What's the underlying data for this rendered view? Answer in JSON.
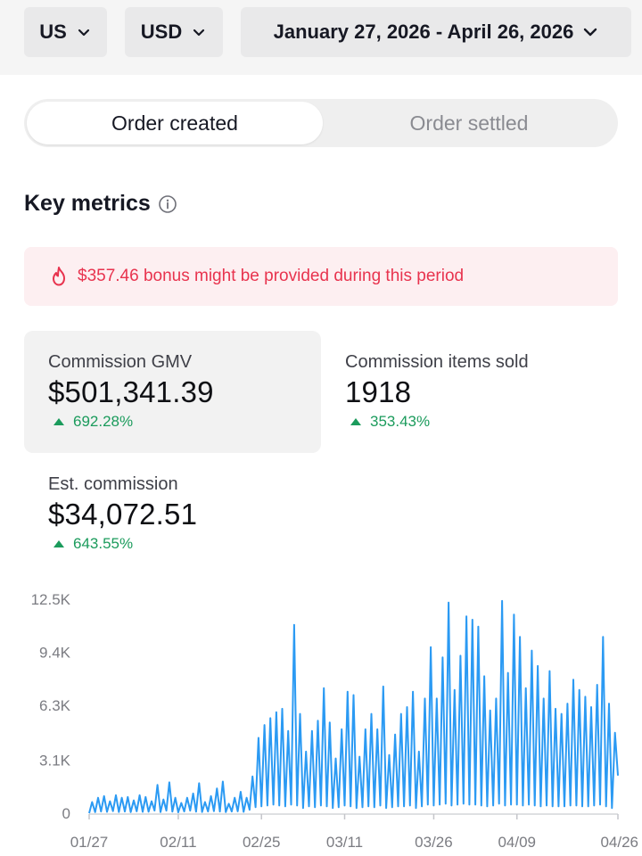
{
  "filters": {
    "country": "US",
    "currency": "USD",
    "date_range": "January 27, 2026 - April 26, 2026"
  },
  "tabs": {
    "created": "Order created",
    "settled": "Order settled",
    "active": "created"
  },
  "section": {
    "title": "Key metrics"
  },
  "bonus": {
    "text": "$357.46 bonus might be provided during this period"
  },
  "metrics": {
    "gmv": {
      "label": "Commission GMV",
      "value": "$501,341.39",
      "change": "692.28%"
    },
    "items": {
      "label": "Commission items sold",
      "value": "1918",
      "change": "353.43%"
    },
    "est": {
      "label": "Est. commission",
      "value": "$34,072.51",
      "change": "643.55%"
    }
  },
  "colors": {
    "line": "#2b9af3",
    "up": "#1b9b5c",
    "bonus": "#e8334e"
  },
  "chart_data": {
    "type": "line",
    "y_tick_labels": [
      "0",
      "3.1K",
      "6.3K",
      "9.4K",
      "12.5K"
    ],
    "y_ticks": [
      0,
      3100,
      6300,
      9400,
      12500
    ],
    "ylim": [
      0,
      12500
    ],
    "x_tick_labels": [
      "01/27",
      "02/11",
      "02/25",
      "03/11",
      "03/26",
      "04/09",
      "04/26"
    ],
    "x_tick_positions": [
      0,
      15,
      29,
      43,
      58,
      72,
      89
    ],
    "x_range": [
      0,
      89
    ],
    "series": [
      {
        "peaks": [
          [
            0.5,
            650
          ],
          [
            1.5,
            900
          ],
          [
            2.5,
            1000
          ],
          [
            3.5,
            700
          ],
          [
            4.5,
            1050
          ],
          [
            5.5,
            900
          ],
          [
            6.5,
            950
          ],
          [
            7.5,
            750
          ],
          [
            8.5,
            1050
          ],
          [
            9.5,
            950
          ],
          [
            10.5,
            700
          ],
          [
            11.5,
            1650
          ],
          [
            12.5,
            800
          ],
          [
            13.5,
            1800
          ],
          [
            14.5,
            900
          ],
          [
            15.5,
            600
          ],
          [
            16.5,
            900
          ],
          [
            17.5,
            1150
          ],
          [
            18.5,
            1750
          ],
          [
            19.5,
            650
          ],
          [
            20.5,
            1000
          ],
          [
            21.5,
            1450
          ],
          [
            22.5,
            1850
          ],
          [
            23.5,
            550
          ],
          [
            24.5,
            900
          ],
          [
            25.5,
            1250
          ],
          [
            26.5,
            900
          ],
          [
            27.5,
            2150
          ],
          [
            28.5,
            4400
          ],
          [
            29.5,
            5150
          ],
          [
            30.5,
            5550
          ],
          [
            31.5,
            5900
          ],
          [
            32.5,
            6100
          ],
          [
            33.5,
            4800
          ],
          [
            34.5,
            11000
          ],
          [
            35.5,
            5800
          ],
          [
            36.5,
            3600
          ],
          [
            37.5,
            4800
          ],
          [
            38.5,
            5400
          ],
          [
            39.5,
            7300
          ],
          [
            40.5,
            5300
          ],
          [
            41.5,
            3200
          ],
          [
            42.5,
            4900
          ],
          [
            43.5,
            7100
          ],
          [
            44.5,
            6900
          ],
          [
            45.5,
            3300
          ],
          [
            46.5,
            4900
          ],
          [
            47.5,
            5800
          ],
          [
            48.5,
            4900
          ],
          [
            49.5,
            7400
          ],
          [
            50.5,
            3400
          ],
          [
            51.5,
            4600
          ],
          [
            52.5,
            5800
          ],
          [
            53.5,
            6200
          ],
          [
            54.5,
            7100
          ],
          [
            55.5,
            3600
          ],
          [
            56.5,
            6700
          ],
          [
            57.5,
            9700
          ],
          [
            58.5,
            6700
          ],
          [
            59.5,
            9100
          ],
          [
            60.5,
            12300
          ],
          [
            61.5,
            7200
          ],
          [
            62.5,
            9200
          ],
          [
            63.5,
            11500
          ],
          [
            64.5,
            11300
          ],
          [
            65.5,
            10900
          ],
          [
            66.5,
            8000
          ],
          [
            67.5,
            6000
          ],
          [
            68.5,
            6700
          ],
          [
            69.5,
            12400
          ],
          [
            70.5,
            8200
          ],
          [
            71.5,
            11600
          ],
          [
            72.5,
            10300
          ],
          [
            73.5,
            7300
          ],
          [
            74.5,
            9500
          ],
          [
            75.5,
            8600
          ],
          [
            76.5,
            6700
          ],
          [
            77.5,
            8300
          ],
          [
            78.5,
            6100
          ],
          [
            79.5,
            5800
          ],
          [
            80.5,
            6400
          ],
          [
            81.5,
            7800
          ],
          [
            82.5,
            7200
          ],
          [
            83.5,
            6800
          ],
          [
            84.5,
            6200
          ],
          [
            85.5,
            7500
          ],
          [
            86.5,
            10300
          ],
          [
            87.5,
            6400
          ],
          [
            88.5,
            4700
          ]
        ],
        "troughs": [
          [
            0,
            0
          ],
          [
            1,
            60
          ],
          [
            2,
            100
          ],
          [
            3,
            80
          ],
          [
            4,
            120
          ],
          [
            5,
            70
          ],
          [
            6,
            100
          ],
          [
            7,
            60
          ],
          [
            8,
            110
          ],
          [
            9,
            80
          ],
          [
            10,
            90
          ],
          [
            11,
            150
          ],
          [
            12,
            60
          ],
          [
            13,
            150
          ],
          [
            14,
            90
          ],
          [
            15,
            50
          ],
          [
            16,
            100
          ],
          [
            17,
            150
          ],
          [
            18,
            90
          ],
          [
            19,
            70
          ],
          [
            20,
            100
          ],
          [
            21,
            120
          ],
          [
            22,
            100
          ],
          [
            23,
            60
          ],
          [
            24,
            100
          ],
          [
            25,
            110
          ],
          [
            26,
            80
          ],
          [
            27,
            200
          ],
          [
            28,
            350
          ],
          [
            29,
            400
          ],
          [
            30,
            450
          ],
          [
            31,
            500
          ],
          [
            32,
            450
          ],
          [
            33,
            400
          ],
          [
            34,
            500
          ],
          [
            35,
            450
          ],
          [
            36,
            300
          ],
          [
            37,
            400
          ],
          [
            38,
            350
          ],
          [
            39,
            450
          ],
          [
            40,
            400
          ],
          [
            41,
            300
          ],
          [
            42,
            350
          ],
          [
            43,
            450
          ],
          [
            44,
            400
          ],
          [
            45,
            300
          ],
          [
            46,
            350
          ],
          [
            47,
            400
          ],
          [
            48,
            350
          ],
          [
            49,
            450
          ],
          [
            50,
            300
          ],
          [
            51,
            350
          ],
          [
            52,
            400
          ],
          [
            53,
            400
          ],
          [
            54,
            450
          ],
          [
            55,
            300
          ],
          [
            56,
            400
          ],
          [
            57,
            500
          ],
          [
            58,
            450
          ],
          [
            59,
            500
          ],
          [
            60,
            550
          ],
          [
            61,
            450
          ],
          [
            62,
            500
          ],
          [
            63,
            550
          ],
          [
            64,
            500
          ],
          [
            65,
            500
          ],
          [
            66,
            450
          ],
          [
            67,
            400
          ],
          [
            68,
            450
          ],
          [
            69,
            550
          ],
          [
            70,
            450
          ],
          [
            71,
            500
          ],
          [
            72,
            500
          ],
          [
            73,
            450
          ],
          [
            74,
            500
          ],
          [
            75,
            450
          ],
          [
            76,
            400
          ],
          [
            77,
            450
          ],
          [
            78,
            400
          ],
          [
            79,
            400
          ],
          [
            80,
            400
          ],
          [
            81,
            450
          ],
          [
            82,
            450
          ],
          [
            83,
            400
          ],
          [
            84,
            400
          ],
          [
            85,
            450
          ],
          [
            86,
            500
          ],
          [
            87,
            400
          ],
          [
            88,
            300
          ],
          [
            89,
            2200
          ]
        ]
      }
    ]
  }
}
